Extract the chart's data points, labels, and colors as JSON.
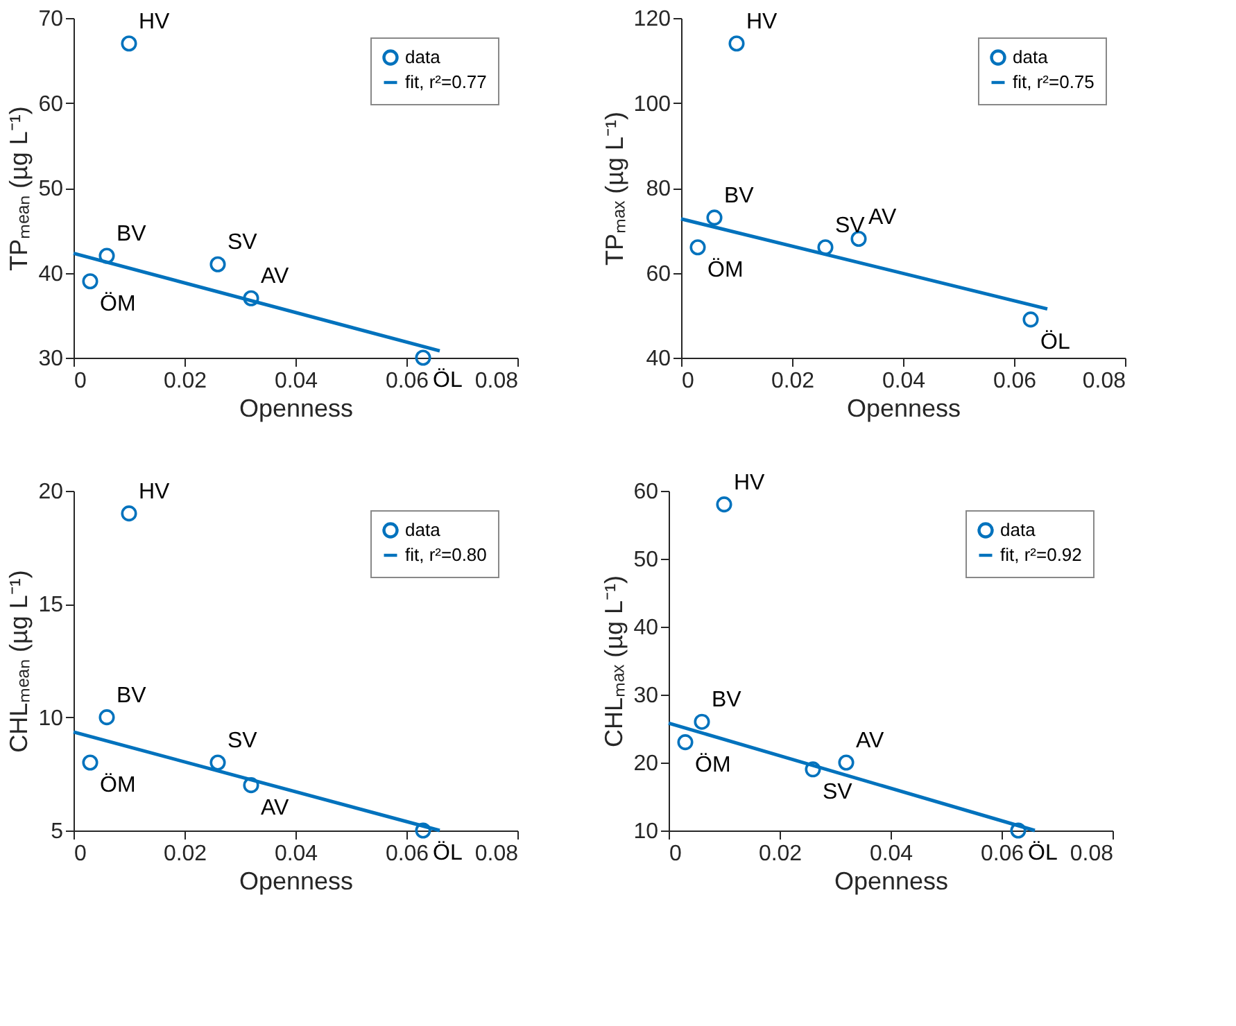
{
  "chart_data": [
    {
      "type": "scatter",
      "xlabel": "Openness",
      "ylabel": "TPₘₑₐₙ (µg L⁻¹)",
      "xlim": [
        0,
        0.08
      ],
      "xticks": [
        0,
        0.02,
        0.04,
        0.06,
        0.08
      ],
      "ylim": [
        30,
        70
      ],
      "yticks": [
        30,
        40,
        50,
        60,
        70
      ],
      "legend": "top right",
      "grid": false,
      "series": [
        {
          "name": "data",
          "color": "#0072bd",
          "marker": "circle",
          "x": [
            0.003,
            0.006,
            0.01,
            0.026,
            0.032,
            0.063
          ],
          "values": [
            39,
            42,
            67,
            41,
            37,
            30
          ]
        },
        {
          "name": "fit, r²=0.77",
          "type": "line",
          "marker": "none",
          "color": "#0072bd",
          "x": [
            0,
            0.066
          ],
          "values": [
            42.3,
            30.8
          ]
        }
      ],
      "annotations": [
        {
          "text": "ÖM",
          "x": 0.003,
          "y": 39
        },
        {
          "text": "BV",
          "x": 0.006,
          "y": 42
        },
        {
          "text": "HV",
          "x": 0.01,
          "y": 67
        },
        {
          "text": "SV",
          "x": 0.026,
          "y": 41
        },
        {
          "text": "AV",
          "x": 0.032,
          "y": 37
        },
        {
          "text": "ÖL",
          "x": 0.063,
          "y": 30
        }
      ]
    },
    {
      "type": "scatter",
      "xlabel": "Openness",
      "ylabel": "TPₘₐₓ (µg L⁻¹)",
      "xlim": [
        0,
        0.08
      ],
      "xticks": [
        0,
        0.02,
        0.04,
        0.06,
        0.08
      ],
      "ylim": [
        40,
        120
      ],
      "yticks": [
        40,
        60,
        80,
        100,
        120
      ],
      "legend": "top right",
      "grid": false,
      "series": [
        {
          "name": "data",
          "color": "#0072bd",
          "marker": "circle",
          "x": [
            0.003,
            0.006,
            0.01,
            0.026,
            0.032,
            0.063
          ],
          "values": [
            66,
            73,
            114,
            66,
            68,
            49
          ]
        },
        {
          "name": "fit, r²=0.75",
          "type": "line",
          "marker": "none",
          "color": "#0072bd",
          "x": [
            0,
            0.066
          ],
          "values": [
            72.7,
            51.5
          ]
        }
      ],
      "annotations": [
        {
          "text": "ÖM",
          "x": 0.003,
          "y": 66
        },
        {
          "text": "BV",
          "x": 0.006,
          "y": 73
        },
        {
          "text": "HV",
          "x": 0.01,
          "y": 114
        },
        {
          "text": "SV",
          "x": 0.026,
          "y": 66
        },
        {
          "text": "AV",
          "x": 0.032,
          "y": 68
        },
        {
          "text": "ÖL",
          "x": 0.063,
          "y": 49
        }
      ]
    },
    {
      "type": "scatter",
      "xlabel": "Openness",
      "ylabel": "CHLₘₑₐₙ (µg L⁻¹)",
      "xlim": [
        0,
        0.08
      ],
      "xticks": [
        0,
        0.02,
        0.04,
        0.06,
        0.08
      ],
      "ylim": [
        5,
        20
      ],
      "yticks": [
        5,
        10,
        15,
        20
      ],
      "legend": "top right",
      "grid": false,
      "series": [
        {
          "name": "data",
          "color": "#0072bd",
          "marker": "circle",
          "x": [
            0.003,
            0.006,
            0.01,
            0.026,
            0.032,
            0.063
          ],
          "values": [
            8,
            10,
            19,
            8,
            7,
            5
          ]
        },
        {
          "name": "fit, r²=0.80",
          "type": "line",
          "marker": "none",
          "color": "#0072bd",
          "x": [
            0,
            0.066
          ],
          "values": [
            9.35,
            5.0
          ]
        }
      ],
      "annotations": [
        {
          "text": "ÖM",
          "x": 0.003,
          "y": 8
        },
        {
          "text": "BV",
          "x": 0.006,
          "y": 10
        },
        {
          "text": "HV",
          "x": 0.01,
          "y": 19
        },
        {
          "text": "SV",
          "x": 0.026,
          "y": 8
        },
        {
          "text": "AV",
          "x": 0.032,
          "y": 7
        },
        {
          "text": "ÖL",
          "x": 0.063,
          "y": 5
        }
      ]
    },
    {
      "type": "scatter",
      "xlabel": "Openness",
      "ylabel": "CHLₘₐₓ (µg L⁻¹)",
      "xlim": [
        0,
        0.08
      ],
      "xticks": [
        0,
        0.02,
        0.04,
        0.06,
        0.08
      ],
      "ylim": [
        10,
        60
      ],
      "yticks": [
        10,
        20,
        30,
        40,
        50,
        60
      ],
      "legend": "top right",
      "grid": false,
      "series": [
        {
          "name": "data",
          "color": "#0072bd",
          "marker": "circle",
          "x": [
            0.003,
            0.006,
            0.01,
            0.026,
            0.032,
            0.063
          ],
          "values": [
            23,
            26,
            58,
            19,
            20,
            10
          ]
        },
        {
          "name": "fit, r²=0.92",
          "type": "line",
          "marker": "none",
          "color": "#0072bd",
          "x": [
            0,
            0.066
          ],
          "values": [
            25.8,
            10
          ]
        }
      ],
      "annotations": [
        {
          "text": "ÖM",
          "x": 0.003,
          "y": 23
        },
        {
          "text": "BV",
          "x": 0.006,
          "y": 26
        },
        {
          "text": "HV",
          "x": 0.01,
          "y": 58
        },
        {
          "text": "SV",
          "x": 0.026,
          "y": 19
        },
        {
          "text": "AV",
          "x": 0.032,
          "y": 20
        },
        {
          "text": "ÖL",
          "x": 0.063,
          "y": 10
        }
      ]
    }
  ]
}
